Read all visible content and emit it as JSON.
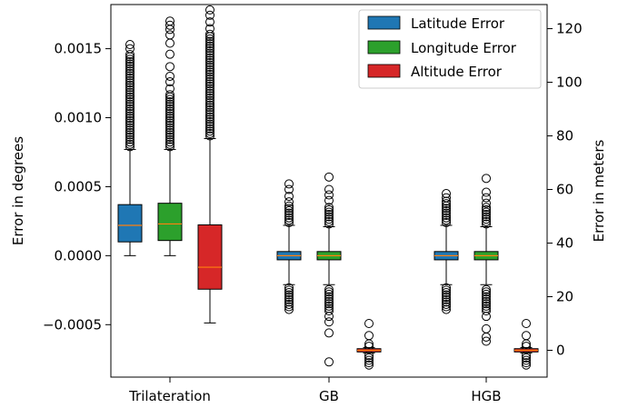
{
  "chart_data": {
    "type": "box",
    "title": "",
    "categories": [
      "Trilateration",
      "GB",
      "HGB"
    ],
    "y_left": {
      "label": "Error in degrees",
      "lim": [
        -0.00088,
        0.00182
      ],
      "ticks": [
        -0.0005,
        0.0,
        0.0005,
        0.001,
        0.0015
      ],
      "tick_labels": [
        "−0.0005",
        "0.0000",
        "0.0005",
        "0.0010",
        "0.0015"
      ]
    },
    "y_right": {
      "label": "Error in meters",
      "lim": [
        -10,
        129
      ],
      "ticks": [
        0,
        20,
        40,
        60,
        80,
        100,
        120
      ],
      "tick_labels": [
        "0",
        "20",
        "40",
        "60",
        "80",
        "100",
        "120"
      ]
    },
    "legend": {
      "position": "upper-right",
      "entries": [
        {
          "label": "Latitude Error",
          "color": "#1f77b4"
        },
        {
          "label": "Longitude Error",
          "color": "#2ca02c"
        },
        {
          "label": "Altitude Error",
          "color": "#d62728"
        }
      ]
    },
    "median_color": "#ff7f0e",
    "series": [
      {
        "name": "Latitude Error",
        "axis": "left",
        "color": "#1f77b4",
        "boxes": [
          {
            "category": "Trilateration",
            "whislo": 0.0,
            "q1": 0.0001,
            "med": 0.00022,
            "q3": 0.00037,
            "whishi": 0.00077,
            "fliers_range": [
              0.00079,
              0.00147
            ],
            "fliers": [
              0.0015,
              0.00153
            ]
          },
          {
            "category": "GB",
            "whislo": -0.00021,
            "q1": -3e-05,
            "med": 0.0,
            "q3": 3e-05,
            "whishi": 0.00022,
            "fliers_range_low": [
              -0.00037,
              -0.00023
            ],
            "fliers_range_high": [
              0.00024,
              0.00036
            ],
            "fliers": [
              -0.00039,
              0.00039,
              0.00043,
              0.00048,
              0.00052
            ]
          },
          {
            "category": "HGB",
            "whislo": -0.00021,
            "q1": -3e-05,
            "med": 0.0,
            "q3": 3e-05,
            "whishi": 0.00022,
            "fliers_range_low": [
              -0.00037,
              -0.00023
            ],
            "fliers_range_high": [
              0.00024,
              0.0004
            ],
            "fliers": [
              -0.00039,
              0.00042,
              0.00045
            ]
          }
        ]
      },
      {
        "name": "Longitude Error",
        "axis": "left",
        "color": "#2ca02c",
        "boxes": [
          {
            "category": "Trilateration",
            "whislo": 0.0,
            "q1": 0.00011,
            "med": 0.00023,
            "q3": 0.00038,
            "whishi": 0.00077,
            "fliers_range": [
              0.00079,
              0.00118
            ],
            "fliers": [
              0.00121,
              0.00126,
              0.0013,
              0.00137,
              0.00146,
              0.00154,
              0.0016,
              0.00164,
              0.00167,
              0.0017
            ]
          },
          {
            "category": "GB",
            "whislo": -0.00021,
            "q1": -3e-05,
            "med": 0.0,
            "q3": 3e-05,
            "whishi": 0.00021,
            "fliers_range_low": [
              -0.0004,
              -0.00023
            ],
            "fliers_range_high": [
              0.00023,
              0.00036
            ],
            "fliers": [
              -0.00044,
              -0.00048,
              -0.00056,
              -0.00077,
              0.0004,
              0.00044,
              0.00048,
              0.00057
            ]
          },
          {
            "category": "HGB",
            "whislo": -0.00021,
            "q1": -3e-05,
            "med": 0.0,
            "q3": 3e-05,
            "whishi": 0.00021,
            "fliers_range_low": [
              -0.0004,
              -0.00023
            ],
            "fliers_range_high": [
              0.00023,
              0.00036
            ],
            "fliers": [
              -0.00044,
              -0.00053,
              -0.00059,
              -0.00062,
              0.00038,
              0.00042,
              0.00046,
              0.00056
            ]
          }
        ]
      },
      {
        "name": "Altitude Error",
        "axis": "right",
        "color": "#d62728",
        "boxes": [
          {
            "category": "Trilateration",
            "whislo": 10.2,
            "q1": 22.8,
            "med": 31.0,
            "q3": 46.8,
            "whishi": 79.0,
            "fliers_range": [
              80.0,
              118.0
            ],
            "fliers": [
              120.0,
              122.5,
              125.0,
              127.0
            ]
          },
          {
            "category": "GB",
            "whislo": -1.0,
            "q1": -0.6,
            "med": 0.0,
            "q3": 0.6,
            "whishi": 1.0,
            "fliers_range_low": [
              -5.5,
              -1.5
            ],
            "fliers_range_high": [
              1.5,
              3.0
            ],
            "fliers": [
              5.5,
              10.0
            ]
          },
          {
            "category": "HGB",
            "whislo": -1.0,
            "q1": -0.6,
            "med": 0.0,
            "q3": 0.6,
            "whishi": 1.0,
            "fliers_range_low": [
              -5.5,
              -1.5
            ],
            "fliers_range_high": [
              1.5,
              3.0
            ],
            "fliers": [
              5.5,
              10.0
            ]
          }
        ]
      }
    ]
  }
}
